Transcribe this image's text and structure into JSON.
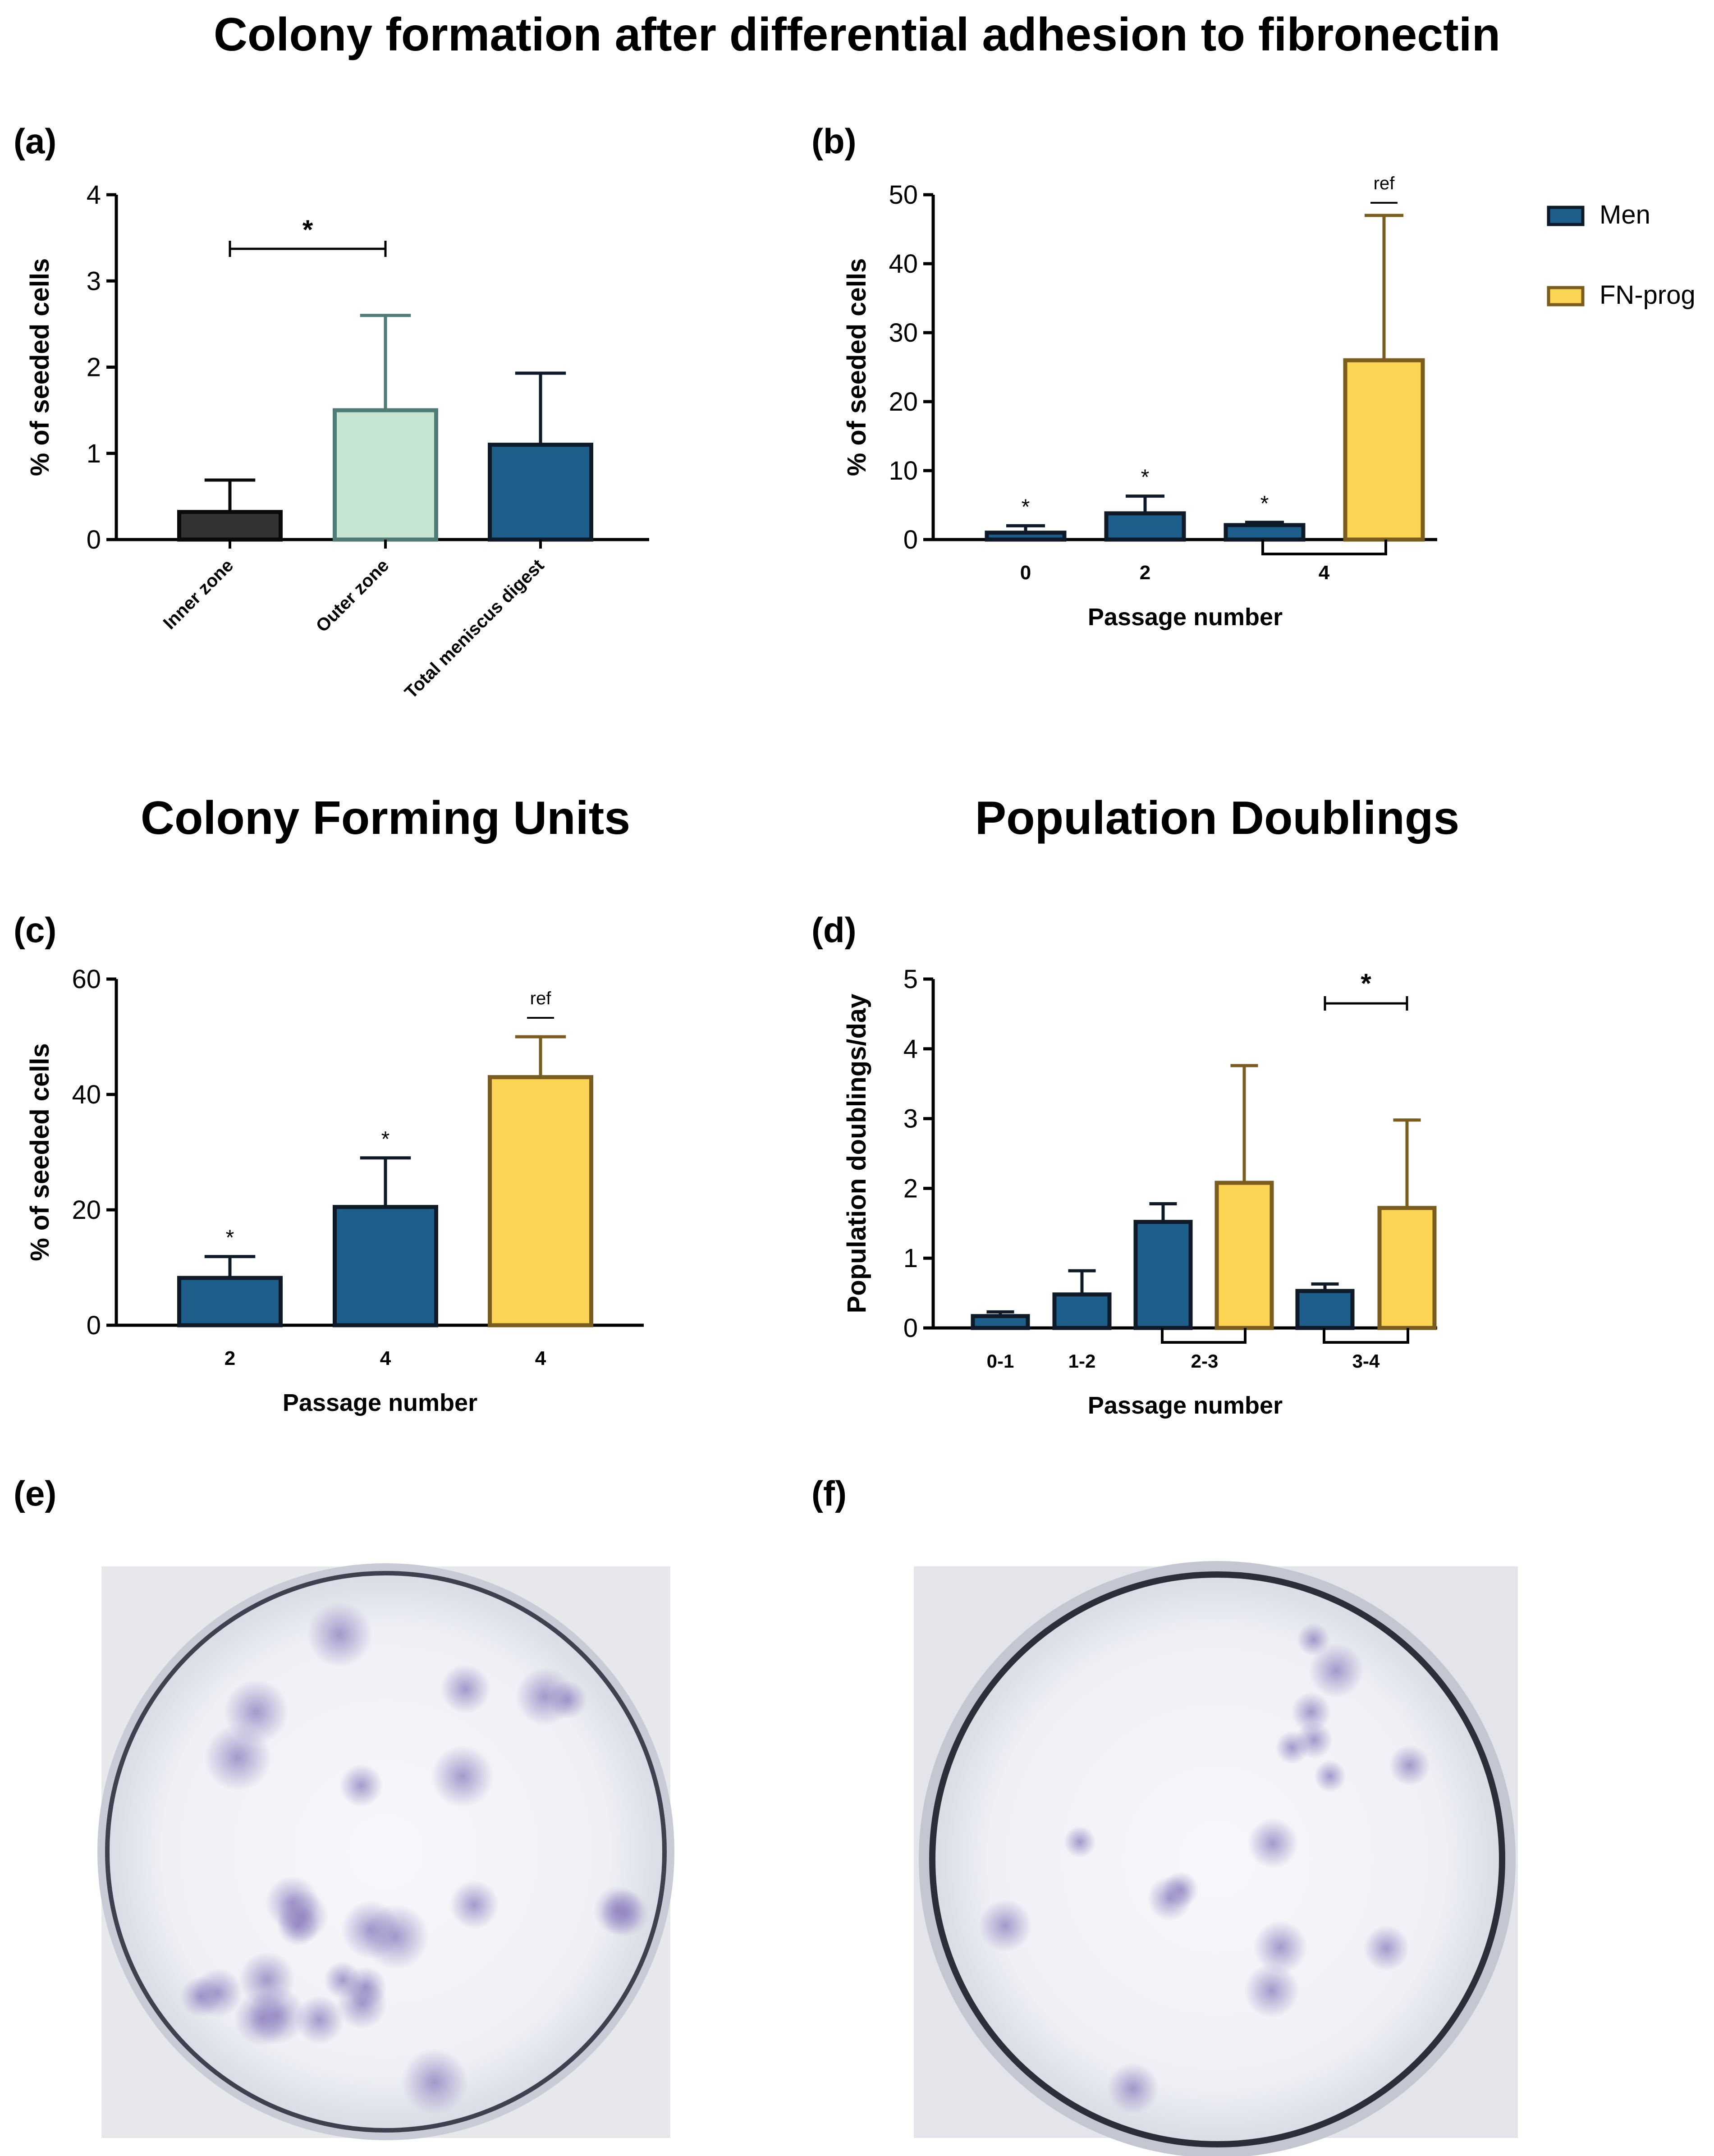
{
  "figure": {
    "main_title": "Colony formation after differential adhesion to fibronectin",
    "section_titles": {
      "c": "Colony Forming Units",
      "d": "Population Doublings"
    },
    "panel_labels": {
      "a": "(a)",
      "b": "(b)",
      "c": "(c)",
      "d": "(d)",
      "e": "(e)",
      "f": "(f)"
    },
    "legend": [
      {
        "label": "Men",
        "color": "#1d5f8a"
      },
      {
        "label": "FN-prog",
        "color": "#fcd453"
      }
    ],
    "photos": {
      "e": {
        "label": "(e)",
        "colonies": 26,
        "dish": "light stained dish, many faint purple colonies"
      },
      "f": {
        "label": "(f)",
        "colonies": 16,
        "dish": "light stained dish, fewer larger purple colonies"
      }
    }
  },
  "colors": {
    "men_fill": "#1d5f8a",
    "men_stroke": "#0e1a28",
    "fnprog_fill": "#fcd453",
    "fnprog_stroke": "#7a5c1e",
    "inner_fill": "#333333",
    "outer_fill": "#c7e6d1",
    "outer_stroke": "#4f7d75"
  },
  "chart_data": [
    {
      "id": "a",
      "type": "bar",
      "title": "",
      "ylabel": "% of seeded cells",
      "xlabel": "",
      "ylim": [
        0,
        4
      ],
      "yticks": [
        0,
        1,
        2,
        3,
        4
      ],
      "categories": [
        "Inner zone",
        "Outer zone",
        "Total meniscus digest"
      ],
      "values": [
        0.32,
        1.5,
        1.1
      ],
      "errors": [
        0.37,
        1.1,
        0.83
      ],
      "significance": [
        {
          "from": 0,
          "to": 1,
          "label": "*"
        }
      ]
    },
    {
      "id": "b",
      "type": "bar",
      "ylabel": "% of seeded cells",
      "xlabel": "Passage number",
      "ylim": [
        0,
        50
      ],
      "yticks": [
        0,
        10,
        20,
        30,
        40,
        50
      ],
      "groups": [
        "0",
        "2",
        "4"
      ],
      "series": [
        {
          "name": "Men",
          "values": [
            1.0,
            3.8,
            2.1
          ],
          "errors": [
            1.0,
            2.5,
            0.4
          ],
          "stars": [
            "*",
            "*",
            "*"
          ]
        },
        {
          "name": "FN-prog",
          "values": [
            null,
            null,
            26
          ],
          "errors": [
            null,
            null,
            21
          ],
          "stars": [
            null,
            null,
            "ref"
          ]
        }
      ]
    },
    {
      "id": "c",
      "type": "bar",
      "ylabel": "% of seeded cells",
      "xlabel": "Passage number",
      "ylim": [
        0,
        60
      ],
      "yticks": [
        0,
        20,
        40,
        60
      ],
      "ytick_labels": [
        "0",
        "20",
        "40",
        "60"
      ],
      "categories": [
        "2",
        "4",
        "4"
      ],
      "series_names": [
        "Men",
        "Men",
        "FN-prog"
      ],
      "values": [
        8.2,
        20.5,
        43
      ],
      "errors": [
        3.7,
        8.5,
        7
      ],
      "stars": [
        "*",
        "*",
        "ref"
      ]
    },
    {
      "id": "d",
      "type": "bar",
      "ylabel": "Population doublings/day",
      "xlabel": "Passage number",
      "ylim": [
        0,
        5
      ],
      "yticks": [
        0,
        1,
        2,
        3,
        4,
        5
      ],
      "groups": [
        "0-1",
        "1-2",
        "2-3",
        "3-4"
      ],
      "series": [
        {
          "name": "Men",
          "values": [
            0.17,
            0.48,
            1.52,
            0.53
          ],
          "errors": [
            0.06,
            0.34,
            0.26,
            0.1
          ]
        },
        {
          "name": "FN-prog",
          "values": [
            null,
            null,
            2.08,
            1.72
          ],
          "errors": [
            null,
            null,
            1.68,
            1.26
          ]
        }
      ],
      "significance": [
        {
          "group": 3,
          "label": "*"
        }
      ]
    }
  ]
}
